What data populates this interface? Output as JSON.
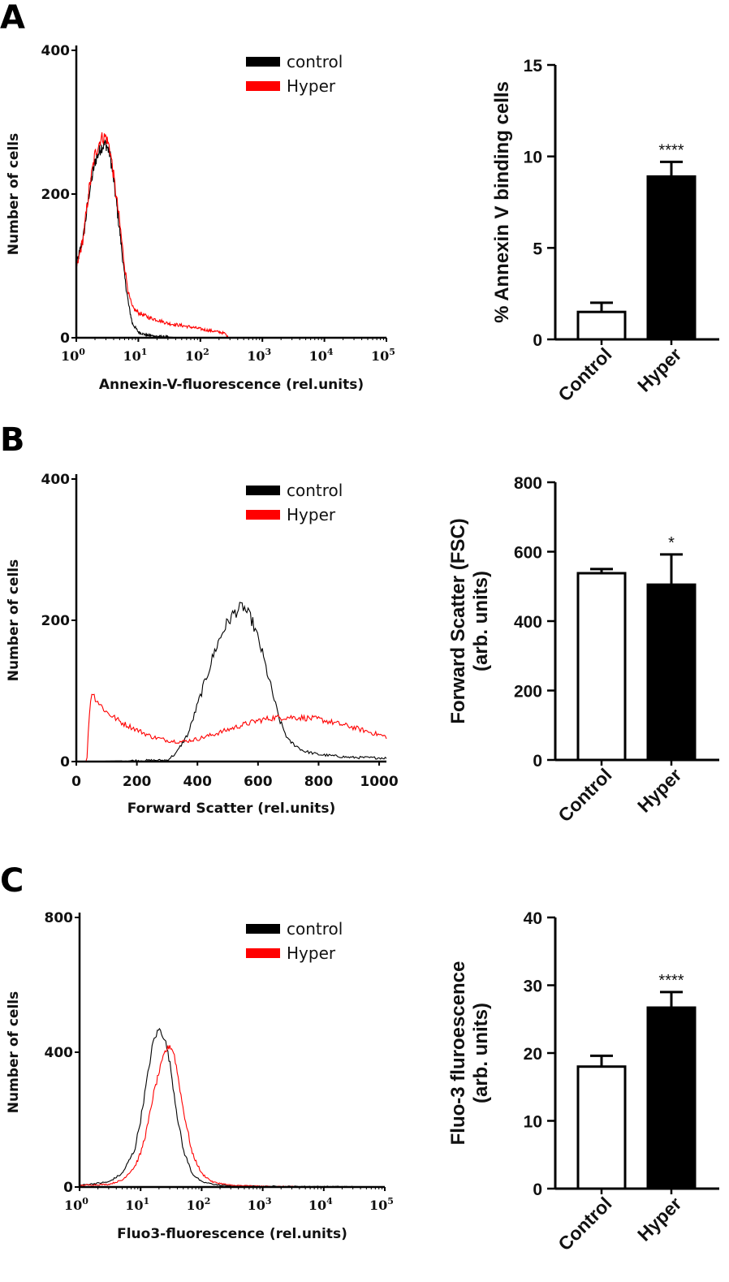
{
  "chart_data": [
    {
      "panel": "A",
      "type": "line",
      "xlabel": "Annexin-V-fluorescence (rel.units)",
      "ylabel": "Number of cells",
      "x_scale": "log",
      "xlim": [
        1,
        100000
      ],
      "ylim": [
        0,
        400
      ],
      "yticks": [
        0,
        200,
        400
      ],
      "xtick_exponents": [
        0,
        1,
        2,
        3,
        4,
        5
      ],
      "legend": {
        "position": "top-center",
        "entries": [
          "control",
          "Hyper"
        ]
      },
      "series": [
        {
          "name": "control",
          "color": "#000000",
          "x": [
            1,
            1.3,
            1.6,
            2.0,
            2.5,
            3.0,
            3.5,
            4.0,
            5.0,
            6.0,
            7.0,
            8.0,
            10,
            13,
            20,
            30,
            50
          ],
          "y": [
            100,
            140,
            200,
            245,
            265,
            270,
            255,
            220,
            150,
            85,
            45,
            20,
            8,
            4,
            2,
            1,
            0
          ]
        },
        {
          "name": "Hyper",
          "color": "#ff0000",
          "x": [
            1,
            1.3,
            1.6,
            2.0,
            2.5,
            3.0,
            3.5,
            4.0,
            5.0,
            6.0,
            7.0,
            8.0,
            10,
            15,
            20,
            30,
            50,
            80,
            120,
            200,
            250,
            280
          ],
          "y": [
            95,
            140,
            205,
            255,
            278,
            280,
            262,
            225,
            160,
            100,
            60,
            42,
            35,
            28,
            25,
            20,
            17,
            14,
            11,
            8,
            6,
            0
          ]
        }
      ]
    },
    {
      "panel": "A",
      "type": "bar",
      "ylabel": "% Annexin V binding cells",
      "categories": [
        "Control",
        "Hyper"
      ],
      "values": [
        1.5,
        8.9
      ],
      "errors": [
        0.5,
        0.8
      ],
      "fills": [
        "#ffffff",
        "#000000"
      ],
      "significance": [
        "",
        "****"
      ],
      "ylim": [
        0,
        15
      ],
      "yticks": [
        0,
        5,
        10,
        15
      ]
    },
    {
      "panel": "B",
      "type": "line",
      "xlabel": "Forward Scatter (rel.units)",
      "ylabel": "Number of cells",
      "xlim": [
        0,
        1024
      ],
      "ylim": [
        0,
        400
      ],
      "xticks": [
        0,
        200,
        400,
        600,
        800,
        1000
      ],
      "yticks": [
        0,
        200,
        400
      ],
      "legend": {
        "position": "top-center",
        "entries": [
          "control",
          "Hyper"
        ]
      },
      "series": [
        {
          "name": "control",
          "color": "#000000",
          "x": [
            0,
            300,
            330,
            370,
            400,
            430,
            460,
            490,
            520,
            550,
            580,
            610,
            640,
            670,
            700,
            750,
            800,
            850,
            900,
            1024
          ],
          "y": [
            0,
            2,
            12,
            40,
            80,
            120,
            160,
            190,
            210,
            220,
            200,
            160,
            110,
            60,
            30,
            15,
            10,
            8,
            6,
            5
          ]
        },
        {
          "name": "Hyper",
          "color": "#ff0000",
          "x": [
            0,
            35,
            40,
            50,
            60,
            80,
            100,
            150,
            200,
            250,
            300,
            350,
            400,
            450,
            500,
            550,
            600,
            650,
            700,
            750,
            800,
            850,
            900,
            950,
            1024
          ],
          "y": [
            0,
            0,
            50,
            100,
            92,
            80,
            70,
            55,
            45,
            35,
            30,
            28,
            32,
            38,
            45,
            52,
            58,
            62,
            63,
            62,
            60,
            55,
            50,
            44,
            35
          ]
        }
      ]
    },
    {
      "panel": "B",
      "type": "bar",
      "ylabel": "Forward Scatter (FSC)",
      "ylabel2": "(arb. units)",
      "categories": [
        "Control",
        "Hyper"
      ],
      "values": [
        538,
        505
      ],
      "errors": [
        12,
        87
      ],
      "fills": [
        "#ffffff",
        "#000000"
      ],
      "significance": [
        "",
        "*"
      ],
      "ylim": [
        0,
        800
      ],
      "yticks": [
        0,
        200,
        400,
        600,
        800
      ]
    },
    {
      "panel": "C",
      "type": "line",
      "xlabel": "Fluo3-fluorescence (rel.units)",
      "ylabel": "Number of cells",
      "x_scale": "log",
      "xlim": [
        1,
        100000
      ],
      "ylim": [
        0,
        800
      ],
      "yticks": [
        0,
        400,
        800
      ],
      "xtick_exponents": [
        0,
        1,
        2,
        3,
        4,
        5
      ],
      "legend": {
        "position": "top-center",
        "entries": [
          "control",
          "Hyper"
        ]
      },
      "series": [
        {
          "name": "control",
          "color": "#000000",
          "x": [
            1,
            3,
            5,
            8,
            10,
            13,
            16,
            20,
            25,
            30,
            40,
            50,
            70,
            100,
            200,
            1000,
            30000
          ],
          "y": [
            5,
            15,
            40,
            110,
            200,
            330,
            430,
            470,
            440,
            370,
            210,
            110,
            40,
            15,
            5,
            2,
            1
          ]
        },
        {
          "name": "Hyper",
          "color": "#ff0000",
          "x": [
            1,
            3,
            5,
            8,
            10,
            13,
            16,
            20,
            25,
            30,
            35,
            40,
            50,
            70,
            100,
            150,
            300,
            1000,
            10000
          ],
          "y": [
            5,
            8,
            20,
            60,
            100,
            180,
            270,
            340,
            400,
            420,
            400,
            340,
            230,
            100,
            40,
            15,
            5,
            2,
            0
          ]
        }
      ]
    },
    {
      "panel": "C",
      "type": "bar",
      "ylabel": "Fluo-3 fluroescence",
      "ylabel2": "(arb. units)",
      "categories": [
        "Control",
        "Hyper"
      ],
      "values": [
        18,
        26.7
      ],
      "errors": [
        1.6,
        2.3
      ],
      "fills": [
        "#ffffff",
        "#000000"
      ],
      "significance": [
        "",
        "****"
      ],
      "ylim": [
        0,
        40
      ],
      "yticks": [
        0,
        10,
        20,
        30,
        40
      ]
    }
  ]
}
